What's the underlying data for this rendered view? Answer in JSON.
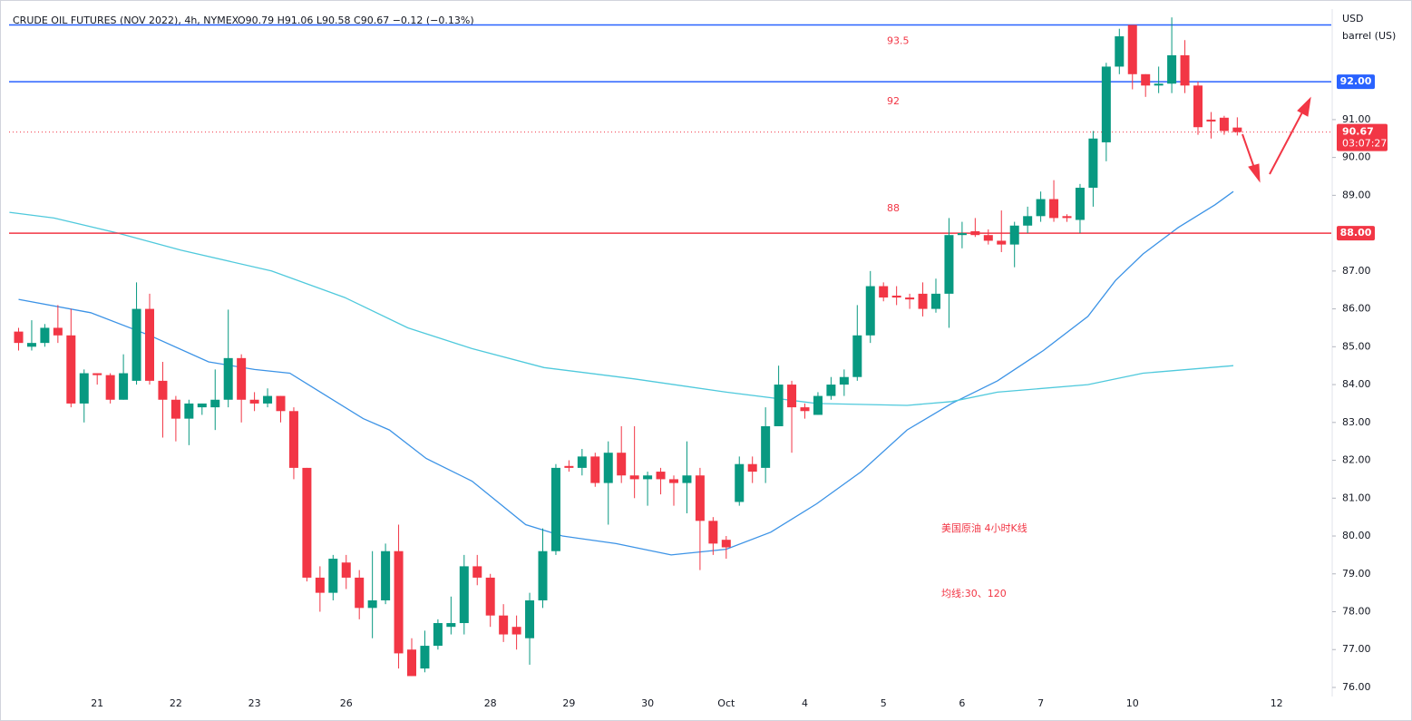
{
  "chart_data": {
    "type": "candlestick",
    "title": "CRUDE OIL FUTURES (NOV 2022), 4h, NYMEX",
    "subtitle": "O90.79 H91.06 L90.58 C90.67 −0.12 (−0.13%)",
    "y_unit": "USD",
    "y_unit_sub": "barrel (US)",
    "annotations": [
      "美国原油 4小时K线",
      "均线:30、120"
    ],
    "up_color": "#089981",
    "down_color": "#f23645",
    "categories": [
      null,
      null,
      null,
      null,
      null,
      null,
      "21",
      null,
      null,
      null,
      null,
      null,
      "22",
      null,
      null,
      null,
      null,
      null,
      "23",
      null,
      null,
      null,
      null,
      null,
      null,
      "26",
      null,
      null,
      null,
      null,
      null,
      null,
      null,
      null,
      null,
      null,
      "28",
      null,
      null,
      null,
      null,
      null,
      "29",
      null,
      null,
      null,
      null,
      null,
      "30",
      null,
      null,
      null,
      null,
      null,
      "Oct",
      null,
      null,
      null,
      null,
      null,
      "4",
      null,
      null,
      null,
      null,
      null,
      "5",
      null,
      null,
      null,
      null,
      null,
      "6",
      null,
      null,
      null,
      null,
      null,
      "7",
      null,
      null,
      null,
      null,
      null,
      null,
      "10",
      null,
      null,
      null,
      null,
      null,
      null,
      null,
      null,
      null,
      null,
      "12"
    ],
    "open": [
      85.4,
      85.0,
      85.1,
      85.5,
      85.3,
      83.5,
      84.3,
      84.25,
      83.6,
      84.1,
      86.0,
      84.1,
      83.6,
      83.1,
      83.4,
      83.4,
      83.6,
      84.7,
      83.6,
      83.5,
      83.7,
      83.3,
      81.8,
      78.9,
      78.5,
      79.3,
      78.9,
      78.1,
      78.3,
      79.6,
      77.0,
      76.5,
      77.1,
      77.6,
      77.7,
      79.2,
      78.9,
      77.9,
      77.6,
      77.3,
      78.3,
      79.6,
      81.85,
      81.8,
      82.1,
      81.4,
      82.2,
      81.6,
      81.5,
      81.7,
      81.5,
      81.4,
      81.6,
      80.4,
      79.9,
      80.9,
      81.9,
      81.8,
      82.9,
      84.0,
      83.4,
      83.2,
      83.7,
      84.0,
      84.2,
      85.3,
      86.6,
      86.35,
      86.3,
      86.4,
      86.0,
      86.4,
      87.95,
      88.05,
      87.95,
      87.8,
      87.7,
      88.2,
      88.45,
      88.9,
      88.45,
      88.35,
      89.2,
      90.4,
      92.4,
      93.5,
      92.2,
      91.9,
      91.95,
      92.7,
      91.9,
      91.0,
      91.05,
      90.79,
      null,
      null,
      null
    ],
    "high": [
      85.5,
      85.7,
      85.6,
      86.1,
      86.0,
      84.4,
      84.3,
      84.3,
      84.8,
      86.7,
      86.4,
      84.6,
      83.7,
      83.6,
      83.5,
      84.4,
      85.98,
      84.8,
      83.8,
      83.9,
      83.7,
      83.4,
      81.8,
      79.2,
      79.5,
      79.5,
      79.1,
      79.6,
      79.8,
      80.3,
      77.3,
      77.5,
      77.8,
      78.4,
      79.5,
      79.5,
      79.0,
      78.2,
      77.9,
      78.5,
      80.2,
      81.9,
      82.0,
      82.3,
      82.2,
      82.5,
      82.9,
      82.9,
      81.7,
      81.8,
      81.6,
      82.5,
      81.8,
      80.5,
      80.0,
      82.1,
      82.1,
      83.4,
      84.5,
      84.1,
      83.5,
      83.8,
      84.2,
      84.4,
      86.1,
      87.0,
      86.7,
      86.6,
      86.4,
      86.7,
      86.8,
      88.4,
      88.3,
      88.4,
      88.1,
      88.6,
      88.3,
      88.7,
      89.1,
      89.4,
      88.5,
      89.3,
      90.7,
      92.5,
      93.4,
      93.5,
      92.2,
      92.4,
      93.7,
      93.1,
      92.0,
      91.2,
      91.1,
      91.06,
      null,
      null,
      null
    ],
    "low": [
      84.9,
      84.9,
      85.0,
      85.1,
      83.4,
      83.0,
      84.0,
      83.5,
      83.6,
      84.0,
      84.0,
      82.6,
      82.5,
      82.4,
      83.2,
      82.8,
      83.4,
      83.0,
      83.3,
      83.4,
      83.0,
      81.5,
      78.8,
      78.0,
      78.3,
      78.6,
      77.8,
      77.3,
      78.2,
      76.5,
      76.3,
      76.4,
      77.0,
      77.4,
      77.4,
      78.7,
      77.6,
      77.2,
      77.0,
      76.6,
      78.1,
      79.5,
      81.7,
      81.6,
      81.3,
      80.3,
      81.4,
      81.0,
      80.8,
      81.1,
      80.8,
      80.6,
      79.1,
      79.5,
      79.4,
      80.8,
      81.4,
      81.4,
      82.9,
      82.2,
      83.1,
      83.2,
      83.6,
      83.7,
      84.1,
      85.1,
      86.2,
      86.1,
      86.0,
      85.8,
      85.9,
      85.5,
      87.6,
      87.9,
      87.7,
      87.5,
      87.1,
      88.0,
      88.3,
      88.3,
      88.3,
      88.0,
      88.7,
      89.9,
      92.2,
      91.8,
      91.6,
      91.7,
      91.7,
      91.7,
      90.6,
      90.5,
      90.6,
      90.58,
      null,
      null,
      null
    ],
    "close": [
      85.1,
      85.1,
      85.5,
      85.3,
      83.5,
      84.3,
      84.25,
      83.6,
      84.3,
      86.0,
      84.1,
      83.6,
      83.1,
      83.5,
      83.5,
      83.6,
      84.7,
      83.6,
      83.5,
      83.7,
      83.3,
      81.8,
      78.9,
      78.5,
      79.4,
      78.9,
      78.1,
      78.3,
      79.6,
      76.9,
      76.3,
      77.1,
      77.7,
      77.7,
      79.2,
      78.9,
      77.9,
      77.4,
      77.4,
      78.3,
      79.6,
      81.8,
      81.8,
      82.1,
      81.4,
      82.2,
      81.6,
      81.5,
      81.6,
      81.5,
      81.4,
      81.6,
      80.4,
      79.8,
      79.7,
      81.9,
      81.7,
      82.9,
      84.0,
      83.4,
      83.3,
      83.7,
      84.0,
      84.2,
      85.3,
      86.6,
      86.3,
      86.3,
      86.25,
      86.0,
      86.4,
      87.95,
      88.0,
      87.95,
      87.8,
      87.7,
      88.2,
      88.45,
      88.9,
      88.4,
      88.4,
      89.2,
      90.5,
      92.4,
      93.2,
      92.2,
      91.9,
      91.95,
      92.7,
      91.9,
      90.8,
      90.95,
      90.7,
      90.67,
      null,
      null,
      null
    ],
    "lines": [
      {
        "color": "#3c93e6",
        "x": [
          0,
          5.5,
          10,
          14.5,
          18,
          20.7,
          22.8,
          26.3,
          28.3,
          31.1,
          34.6,
          38.7,
          41.5,
          45.6,
          49.8,
          54,
          57.4,
          60.9,
          64.3,
          67.8,
          71.2,
          74.7,
          78.2,
          81.6,
          83.7,
          85.8,
          88.5,
          91.3,
          92.7
        ],
        "values": [
          86.25,
          85.9,
          85.3,
          84.6,
          84.4,
          84.3,
          83.85,
          83.1,
          82.8,
          82.05,
          81.45,
          80.3,
          80.0,
          79.8,
          79.5,
          79.65,
          80.1,
          80.85,
          81.7,
          82.8,
          83.5,
          84.1,
          84.9,
          85.8,
          86.75,
          87.45,
          88.15,
          88.75,
          89.1
        ]
      },
      {
        "color": "#4fc9dc",
        "x": [
          -0.7,
          2.7,
          7.6,
          12.4,
          19.3,
          24.9,
          29.7,
          34.6,
          40.1,
          47,
          54,
          60.9,
          67.8,
          71.2,
          74.7,
          81.6,
          85.8,
          92.7
        ],
        "values": [
          88.55,
          88.4,
          88.0,
          87.55,
          87.0,
          86.3,
          85.5,
          84.95,
          84.45,
          84.15,
          83.8,
          83.5,
          83.45,
          83.55,
          83.8,
          84.0,
          84.3,
          84.5
        ]
      }
    ],
    "hlines": [
      {
        "value": 93.5,
        "color": "#2962ff",
        "note": "93.5"
      },
      {
        "value": 92,
        "color": "#2962ff",
        "note": "92",
        "label": "92.00"
      },
      {
        "value": 88,
        "color": "#f23645",
        "note": "88",
        "label": "88.00"
      }
    ],
    "last_price": {
      "value": 90.67,
      "label": "90.67",
      "countdown": "03:07:27",
      "color": "#f23645"
    },
    "ylim": [
      75.76,
      93.92
    ],
    "yticks": [
      {
        "value": 76,
        "label": "76.00"
      },
      {
        "value": 77,
        "label": "77.00"
      },
      {
        "value": 78,
        "label": "78.00"
      },
      {
        "value": 79,
        "label": "79.00"
      },
      {
        "value": 80,
        "label": "80.00"
      },
      {
        "value": 81,
        "label": "81.00"
      },
      {
        "value": 82,
        "label": "82.00"
      },
      {
        "value": 83,
        "label": "83.00"
      },
      {
        "value": 84,
        "label": "84.00"
      },
      {
        "value": 85,
        "label": "85.00"
      },
      {
        "value": 86,
        "label": "86.00"
      },
      {
        "value": 87,
        "label": "87.00"
      },
      {
        "value": 89,
        "label": "89.00"
      },
      {
        "value": 90,
        "label": "90.00"
      },
      {
        "value": 91,
        "label": "91.00"
      }
    ],
    "grid": false
  }
}
